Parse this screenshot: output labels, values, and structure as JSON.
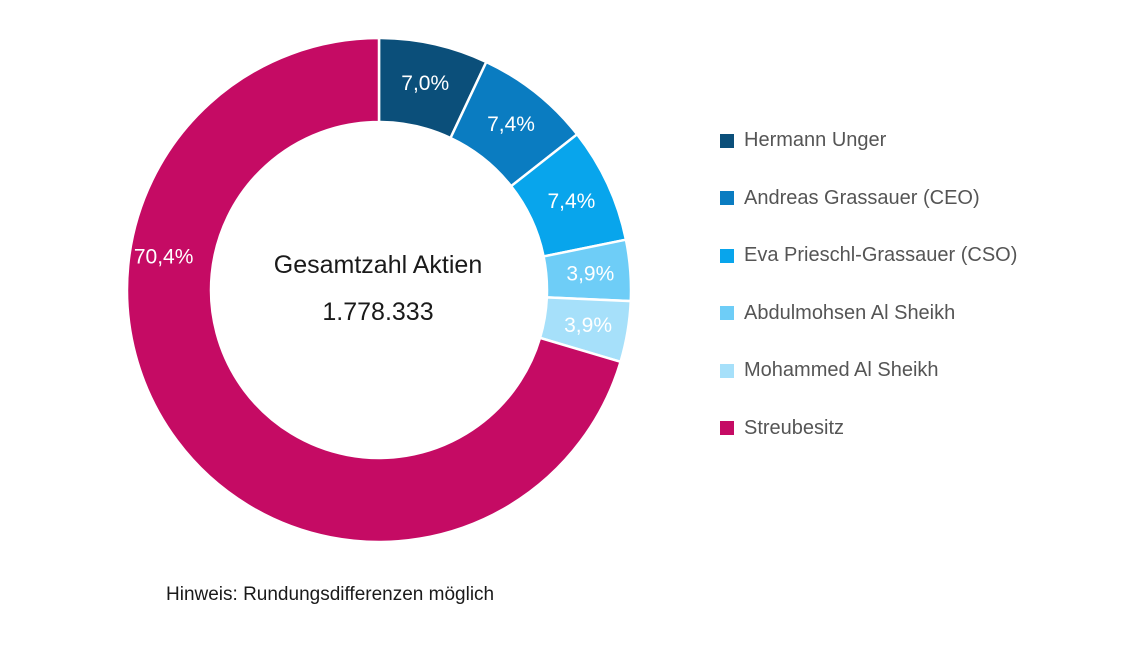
{
  "chart_data": {
    "type": "pie",
    "center_title": "Gesamtzahl Aktien",
    "center_value": "1.778.333",
    "slices": [
      {
        "name": "Hermann Unger",
        "value": 7.0,
        "label": "7,0%",
        "color": "#0b4f7a"
      },
      {
        "name": "Andreas Grassauer (CEO)",
        "value": 7.4,
        "label": "7,4%",
        "color": "#0a7cc1"
      },
      {
        "name": "Eva Prieschl-Grassauer (CSO)",
        "value": 7.4,
        "label": "7,4%",
        "color": "#08a5ec"
      },
      {
        "name": "Abdulmohsen Al Sheikh",
        "value": 3.9,
        "label": "3,9%",
        "color": "#6ecdf7"
      },
      {
        "name": "Mohammed Al Sheikh",
        "value": 3.9,
        "label": "3,9%",
        "color": "#a6e0fa"
      },
      {
        "name": "Streubesitz",
        "value": 70.4,
        "label": "70,4%",
        "color": "#c50b64"
      }
    ],
    "legend_position": "right"
  },
  "note": "Hinweis: Rundungsdifferenzen möglich"
}
